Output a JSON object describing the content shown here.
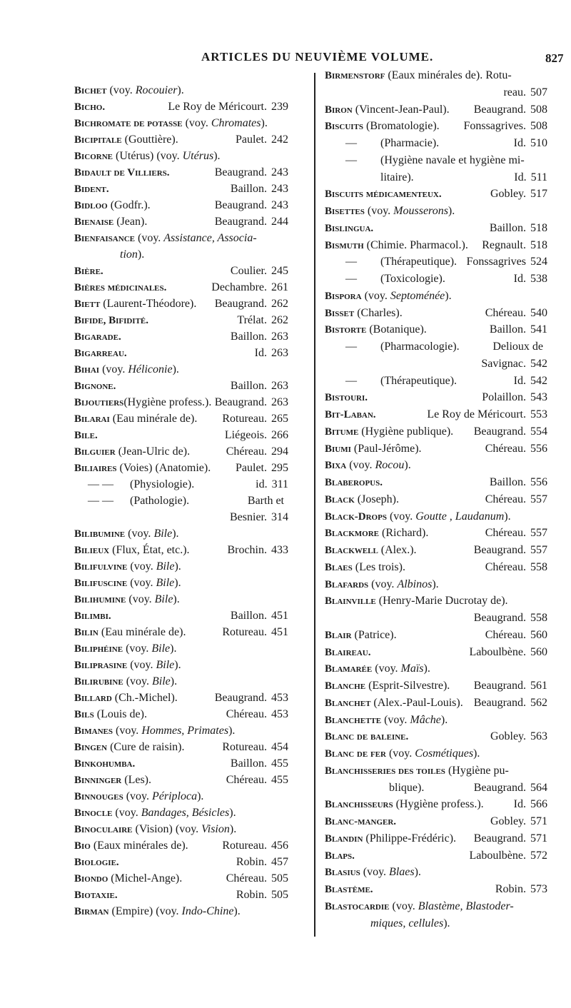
{
  "header": {
    "title": "ARTICLES DU NEUVIÈME VOLUME.",
    "page_number": "827"
  },
  "left": [
    {
      "h": "Bichet",
      "t": " (voy. ",
      "i": "Rocouier",
      "e": ")."
    },
    {
      "h": "Bicho.",
      "a": "Le Roy de Méricourt.",
      "p": "239"
    },
    {
      "h": "Bichromate de potasse",
      "t": " (voy. ",
      "i": "Chromates",
      "e": ")."
    },
    {
      "h": "Bicipitale",
      "t": " (Gouttière).",
      "a": "Paulet.",
      "p": "242"
    },
    {
      "h": "Bicorne",
      "t": " (Utérus) (voy. ",
      "i": "Utérus",
      "e": ")."
    },
    {
      "h": "Bidault de Villiers.",
      "a": "Beaugrand.",
      "p": "243"
    },
    {
      "h": "Bident.",
      "a": "Baillon.",
      "p": "243"
    },
    {
      "h": "Bidloo",
      "t": " (Godfr.).",
      "a": "Beaugrand.",
      "p": "243"
    },
    {
      "h": "Bienaise",
      "t": " (Jean).",
      "a": "Beaugrand.",
      "p": "244"
    },
    {
      "h": "Bienfaisance",
      "t": " (voy. ",
      "i": "Assistance, Associa-"
    },
    {
      "cont": true,
      "i": "tion",
      "e": ")."
    },
    {
      "h": "Bière.",
      "a": "Coulier.",
      "p": "245"
    },
    {
      "h": "Bières médicinales.",
      "a": "Dechambre.",
      "p": "261"
    },
    {
      "h": "Biett",
      "t": " (Laurent-Théodore).",
      "a": "Beaugrand.",
      "p": "262"
    },
    {
      "h": "Bifide, Bifidité.",
      "a": "Trélat.",
      "p": "262"
    },
    {
      "h": "Bigarade.",
      "a": "Baillon.",
      "p": "263"
    },
    {
      "h": "Bigarreau.",
      "a": "Id.",
      "p": "263"
    },
    {
      "h": "Bihai",
      "t": " (voy. ",
      "i": "Héliconie",
      "e": ")."
    },
    {
      "h": "Bignone.",
      "a": "Baillon.",
      "p": "263"
    },
    {
      "h": "Bijoutiers",
      "t": "(Hygiène profess.).",
      "a": "Beaugrand.",
      "p": "263"
    },
    {
      "h": "Bilarai",
      "t": " (Eau minérale de).",
      "a": "Rotureau.",
      "p": "265"
    },
    {
      "h": "Bile.",
      "a": "Liégeois.",
      "p": "266"
    },
    {
      "h": "Bilguier",
      "t": " (Jean-Ulric de).",
      "a": "Chéreau.",
      "p": "294"
    },
    {
      "h": "Biliaires",
      "t": " (Voies) (Anatomie).",
      "a": "Paulet.",
      "p": "295"
    },
    {
      "d": "— —",
      "t": " (Physiologie).",
      "a": "id.",
      "p": "311"
    },
    {
      "d": "— —",
      "t": " (Pathologie).",
      "a": "Barth et"
    },
    {
      "cont": true,
      "a": "Besnier.",
      "p": "314"
    },
    {
      "h": "Bilibumine",
      "t": " (voy. ",
      "i": "Bile",
      "e": ")."
    },
    {
      "h": "Bilieux",
      "t": " (Flux, État, etc.).",
      "a": "Brochin.",
      "p": "433"
    },
    {
      "h": "Bilifulvine",
      "t": " (voy. ",
      "i": "Bile",
      "e": ")."
    },
    {
      "h": "Bilifuscine",
      "t": " (voy. ",
      "i": "Bile",
      "e": ")."
    },
    {
      "h": "Bilihumine",
      "t": " (voy. ",
      "i": "Bile",
      "e": ")."
    },
    {
      "h": "Bilimbi.",
      "a": "Baillon.",
      "p": "451"
    },
    {
      "h": "Bilin",
      "t": " (Eau minérale de).",
      "a": "Rotureau.",
      "p": "451"
    },
    {
      "h": "Biliphéine",
      "t": " (voy. ",
      "i": "Bile",
      "e": ")."
    },
    {
      "h": "Biliprasine",
      "t": " (voy. ",
      "i": "Bile",
      "e": ")."
    },
    {
      "h": "Bilirubine",
      "t": " (voy. ",
      "i": "Bile",
      "e": ")."
    },
    {
      "h": "Billard",
      "t": " (Ch.-Michel).",
      "a": "Beaugrand.",
      "p": "453"
    },
    {
      "h": "Bils",
      "t": " (Louis de).",
      "a": "Chéreau.",
      "p": "453"
    },
    {
      "h": "Bimanes",
      "t": " (voy. ",
      "i": "Hommes, Primates",
      "e": ")."
    },
    {
      "h": "Bingen",
      "t": " (Cure de raisin).",
      "a": "Rotureau.",
      "p": "454"
    },
    {
      "h": "Binkohumba.",
      "a": "Baillon.",
      "p": "455"
    },
    {
      "h": "Binninger",
      "t": " (Les).",
      "a": "Chéreau.",
      "p": "455"
    },
    {
      "h": "Binnouges",
      "t": " (voy. ",
      "i": "Périploca",
      "e": ")."
    },
    {
      "h": "Binocle",
      "t": " (voy. ",
      "i": "Bandages, Bésicles",
      "e": ")."
    },
    {
      "h": "Binoculaire",
      "t": " (Vision) (voy. ",
      "i": "Vision",
      "e": ")."
    },
    {
      "h": "Bio",
      "t": " (Eaux minérales de).",
      "a": "Rotureau.",
      "p": "456"
    },
    {
      "h": "Biologie.",
      "a": "Robin.",
      "p": "457"
    },
    {
      "h": "Biondo",
      "t": " (Michel-Ange).",
      "a": "Chéreau.",
      "p": "505"
    },
    {
      "h": "Biotaxie.",
      "a": "Robin.",
      "p": "505"
    },
    {
      "h": "Birman",
      "t": " (Empire) (voy. ",
      "i": "Indo-Chine",
      "e": ")."
    }
  ],
  "right": [
    {
      "h": "Birmenstorf",
      "t": " (Eaux minérales de). Rotu-"
    },
    {
      "cont": true,
      "a": "reau.",
      "p": "507"
    },
    {
      "h": "Biron",
      "t": " (Vincent-Jean-Paul).",
      "a": "Beaugrand.",
      "p": "508"
    },
    {
      "h": "Biscuits",
      "t": " (Bromatologie).",
      "a": "Fonssagrives.",
      "p": "508"
    },
    {
      "d": "—",
      "t": " (Pharmacie).",
      "a": "Id.",
      "p": "510"
    },
    {
      "d": "—",
      "t": " (Hygiène navale et hygiène mi-"
    },
    {
      "d": " ",
      "t": " litaire).",
      "a": "Id.",
      "p": "511"
    },
    {
      "h": "Biscuits médicamenteux.",
      "a": "Gobley.",
      "p": "517"
    },
    {
      "h": "Bisettes",
      "t": " (voy. ",
      "i": "Mousserons",
      "e": ")."
    },
    {
      "h": "Bislingua.",
      "a": "Baillon.",
      "p": "518"
    },
    {
      "h": "Bismuth",
      "t": " (Chimie. Pharmacol.).",
      "a": "Regnault.",
      "p": "518"
    },
    {
      "d": "—",
      "t": " (Thérapeutique).",
      "a": "Fonssagrives",
      "p": "524"
    },
    {
      "d": "—",
      "t": " (Toxicologie).",
      "a": "Id.",
      "p": "538"
    },
    {
      "h": "Bispora",
      "t": " (voy. ",
      "i": "Septoménée",
      "e": ")."
    },
    {
      "h": "Bisset",
      "t": " (Charles).",
      "a": "Chéreau.",
      "p": "540"
    },
    {
      "h": "Bistorte",
      "t": " (Botanique).",
      "a": "Baillon.",
      "p": "541"
    },
    {
      "d": "—",
      "t": " (Pharmacologie).",
      "a": "Delioux de"
    },
    {
      "cont": true,
      "a": "Savignac.",
      "p": "542"
    },
    {
      "d": "—",
      "t": " (Thérapeutique).",
      "a": "Id.",
      "p": "542"
    },
    {
      "h": "Bistouri.",
      "a": "Polaillon.",
      "p": "543"
    },
    {
      "h": "Bit-Laban.",
      "a": "Le Roy de Méricourt.",
      "p": "553"
    },
    {
      "h": "Bitume",
      "t": " (Hygiène publique).",
      "a": "Beaugrand.",
      "p": "554"
    },
    {
      "h": "Biumi",
      "t": " (Paul-Jérôme).",
      "a": "Chéreau.",
      "p": "556"
    },
    {
      "h": "Bixa",
      "t": " (voy. ",
      "i": "Rocou",
      "e": ")."
    },
    {
      "h": "Blaberopus.",
      "a": "Baillon.",
      "p": "556"
    },
    {
      "h": "Black",
      "t": " (Joseph).",
      "a": "Chéreau.",
      "p": "557"
    },
    {
      "h": "Black-Drops",
      "t": " (voy. ",
      "i": "Goutte , Laudanum",
      "e": ")."
    },
    {
      "h": "Blackmore",
      "t": " (Richard).",
      "a": "Chéreau.",
      "p": "557"
    },
    {
      "h": "Blackwell",
      "t": " (Alex.).",
      "a": "Beaugrand.",
      "p": "557"
    },
    {
      "h": "Blaes",
      "t": " (Les trois).",
      "a": "Chéreau.",
      "p": "558"
    },
    {
      "h": "Blafards",
      "t": " (voy. ",
      "i": "Albinos",
      "e": ")."
    },
    {
      "h": "Blainville",
      "t": " (Henry-Marie Ducrotay de)."
    },
    {
      "cont": true,
      "a": "Beaugrand.",
      "p": "558"
    },
    {
      "h": "Blair",
      "t": " (Patrice).",
      "a": "Chéreau.",
      "p": "560"
    },
    {
      "h": "Blaireau.",
      "a": "Laboulbène.",
      "p": "560"
    },
    {
      "h": "Blamarée",
      "t": " (voy. ",
      "i": "Maïs",
      "e": ")."
    },
    {
      "h": "Blanche",
      "t": " (Esprit-Silvestre).",
      "a": "Beaugrand.",
      "p": "561"
    },
    {
      "h": "Blanchet",
      "t": " (Alex.-Paul-Louis).",
      "a": "Beaugrand.",
      "p": "562"
    },
    {
      "h": "Blanchette",
      "t": " (voy. ",
      "i": "Mâche",
      "e": ")."
    },
    {
      "h": "Blanc de baleine.",
      "a": "Gobley.",
      "p": "563"
    },
    {
      "h": "Blanc de fer",
      "t": " (voy. ",
      "i": "Cosmétiques",
      "e": ")."
    },
    {
      "h": "Blanchisseries des toiles",
      "t": " (Hygiène pu-"
    },
    {
      "cont": true,
      "t": "blique).",
      "a": " Beaugrand.",
      "p": "564"
    },
    {
      "h": "Blanchisseurs",
      "t": " (Hygiène profess.).",
      "a": "Id.",
      "p": "566"
    },
    {
      "h": "Blanc-manger.",
      "a": "Gobley.",
      "p": "571"
    },
    {
      "h": "Blandin",
      "t": " (Philippe-Frédéric).",
      "a": "Beaugrand.",
      "p": "571"
    },
    {
      "h": "Blaps.",
      "a": "Laboulbène.",
      "p": "572"
    },
    {
      "h": "Blasius",
      "t": " (voy. ",
      "i": "Blaes",
      "e": ")."
    },
    {
      "h": "Blastème.",
      "a": "Robin.",
      "p": "573"
    },
    {
      "h": "Blastocardie",
      "t": " (voy. ",
      "i": "Blastème, Blastoder-"
    },
    {
      "cont": true,
      "i": "miques, cellules",
      "e": ")."
    }
  ]
}
